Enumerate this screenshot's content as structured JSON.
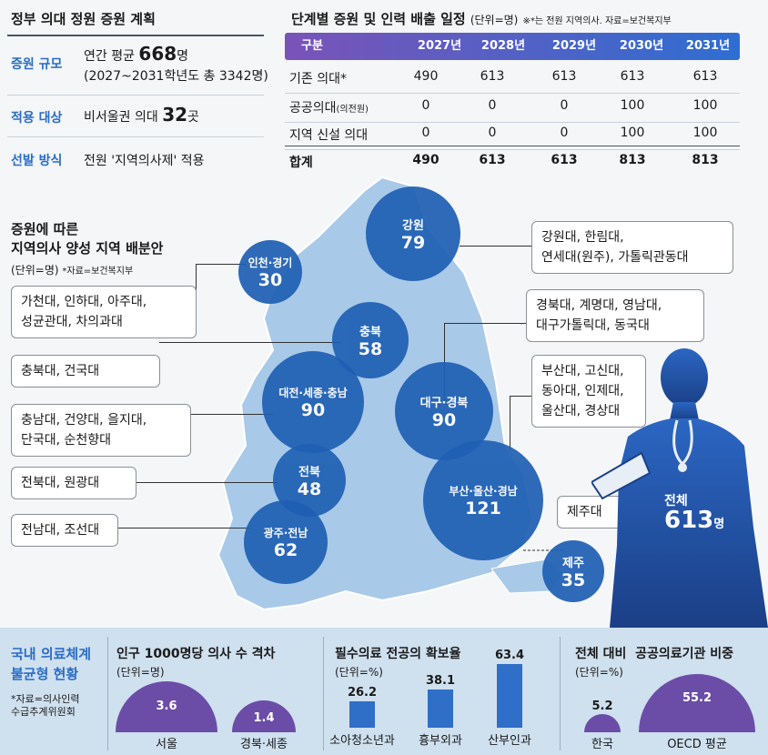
{
  "plan": {
    "title": "정부 의대 정원 증원 계획",
    "rows": [
      {
        "label": "증원 규모",
        "pre": "연간 평균 ",
        "big": "668",
        "post": "명",
        "line2": "(2027~2031학년도 총 3342명)"
      },
      {
        "label": "적용 대상",
        "pre": "비서울권 의대 ",
        "big": "32",
        "post": "곳",
        "line2": ""
      },
      {
        "label": "선발 방식",
        "pre": "전원 '지역의사제' 적용",
        "big": "",
        "post": "",
        "line2": ""
      }
    ]
  },
  "table": {
    "title": "단계별 증원 및 인력 배출 일정",
    "unit": "(단위=명)",
    "note": "※*는 전원 지역의사. 자료=보건복지부",
    "headers": [
      "구분",
      "2027년",
      "2028년",
      "2029년",
      "2030년",
      "2031년"
    ],
    "rows": [
      {
        "label": "기존 의대*",
        "sub": "",
        "values": [
          "490",
          "613",
          "613",
          "613",
          "613"
        ]
      },
      {
        "label": "공공의대",
        "sub": "(의전원)",
        "values": [
          "0",
          "0",
          "0",
          "100",
          "100"
        ]
      },
      {
        "label": "지역 신설 의대",
        "sub": "",
        "values": [
          "0",
          "0",
          "0",
          "100",
          "100"
        ]
      },
      {
        "label": "합계",
        "sub": "",
        "values": [
          "490",
          "613",
          "613",
          "813",
          "813"
        ]
      }
    ]
  },
  "map": {
    "title1": "증원에 따른",
    "title2": "지역의사 양성 지역 배분안",
    "unit": "(단위=명)",
    "source": "*자료=보건복지부",
    "regions": [
      {
        "name": "강원",
        "value": "79"
      },
      {
        "name": "인천·경기",
        "value": "30"
      },
      {
        "name": "충북",
        "value": "58"
      },
      {
        "name": "대전·세종·충남",
        "value": "90"
      },
      {
        "name": "대구·경북",
        "value": "90"
      },
      {
        "name": "전북",
        "value": "48"
      },
      {
        "name": "부산·울산·경남",
        "value": "121"
      },
      {
        "name": "광주·전남",
        "value": "62"
      },
      {
        "name": "제주",
        "value": "35"
      }
    ],
    "boxes": {
      "gangwon": [
        "강원대, 한림대,",
        "연세대(원주), 가톨릭관동대"
      ],
      "incheon": [
        "가천대, 인하대, 아주대,",
        "성균관대, 차의과대"
      ],
      "chungbuk": [
        "충북대, 건국대"
      ],
      "daejeon": [
        "충남대, 건양대, 을지대,",
        "단국대, 순천향대"
      ],
      "jeonbuk": [
        "전북대, 원광대"
      ],
      "gwangju": [
        "전남대, 조선대"
      ],
      "daegu": [
        "경북대, 계명대, 영남대,",
        "대구가톨릭대, 동국대"
      ],
      "busan": [
        "부산대, 고신대,",
        "동아대, 인제대,",
        "울산대, 경상대"
      ],
      "jeju": [
        "제주대"
      ]
    },
    "total_label": "전체",
    "total_value": "613",
    "total_unit": "명"
  },
  "bottom": {
    "title1": "국내 의료체계",
    "title2": "불균형 현황",
    "source1": "*자료=의사인력",
    "source2": "수급추계위원회",
    "doctors": {
      "title": "인구 1000명당 의사 수 격차",
      "unit": "(단위=명)",
      "items": [
        {
          "label": "서울",
          "value": 3.6
        },
        {
          "label": "경북·세종",
          "value": 1.4
        }
      ]
    },
    "essential": {
      "title": "필수의료 전공의 확보율",
      "unit": "(단위=%)",
      "items": [
        {
          "label": "소아청소년과",
          "value": 26.2
        },
        {
          "label": "흉부외과",
          "value": 38.1
        },
        {
          "label": "산부인과",
          "value": 63.4
        }
      ]
    },
    "public": {
      "title": "전체 대비  공공의료기관 비중",
      "unit": "(단위=%)",
      "items": [
        {
          "label": "한국",
          "value": 5.2
        },
        {
          "label": "OECD 평균",
          "value": 55.2
        }
      ]
    }
  },
  "colors": {
    "accent": "#2b6cc4",
    "circle": "#1f5fb3",
    "purple": "#6b4da8",
    "bar": "#2f6fc8",
    "map": "#a9c9e8"
  }
}
